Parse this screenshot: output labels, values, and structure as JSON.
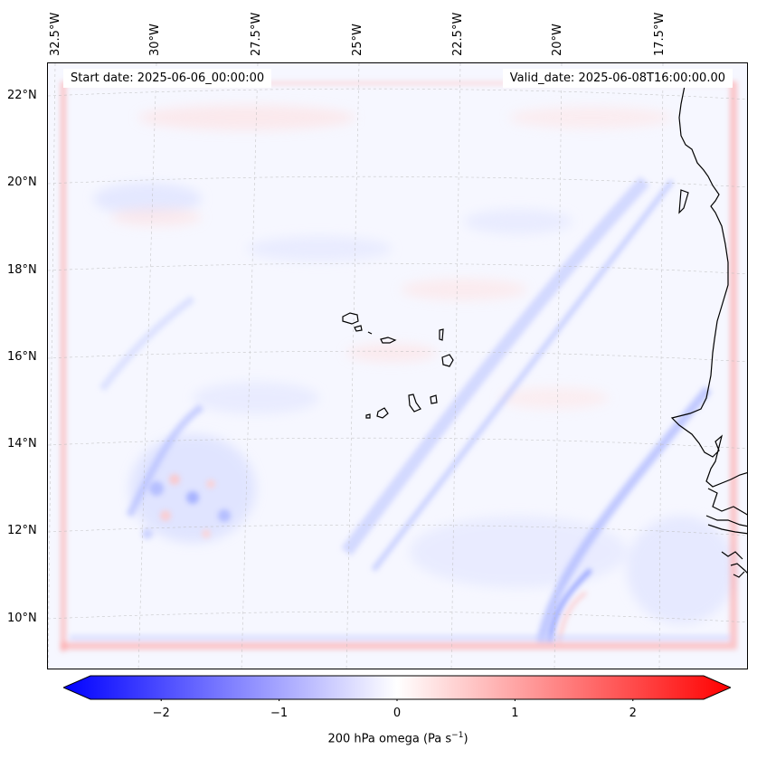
{
  "map": {
    "start_date": "Start date: 2025-06-06_00:00:00",
    "valid_date": "Valid_date: 2025-06-08T16:00:00.00",
    "lon_labels": [
      "32.5°W",
      "30°W",
      "27.5°W",
      "25°W",
      "22.5°W",
      "20°W",
      "17.5°W"
    ],
    "lat_labels": [
      "22°N",
      "20°N",
      "18°N",
      "16°N",
      "14°N",
      "12°N",
      "10°N"
    ],
    "field": "200 hPa omega",
    "colors": {
      "negative": "#0000ff",
      "neutral": "#ffffff",
      "positive": "#ff0000",
      "coast": "#000000"
    }
  },
  "colorbar": {
    "min": -2.6,
    "max": 2.6,
    "ticks": [
      "−2",
      "−1",
      "0",
      "1",
      "2"
    ],
    "tick_values": [
      -2,
      -1,
      0,
      1,
      2
    ],
    "label": "200 hPa omega (Pa s",
    "label_exp": "−1",
    "label_close": ")"
  }
}
